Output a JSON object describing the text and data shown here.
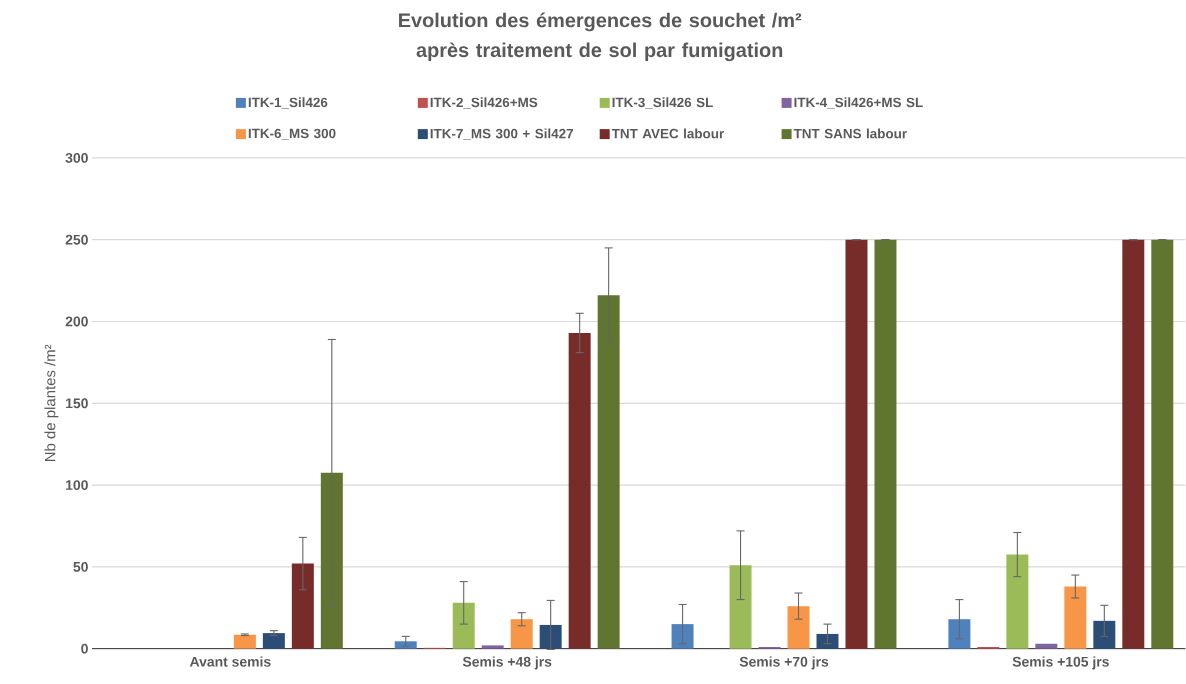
{
  "chart_data": {
    "type": "bar",
    "title": "Evolution des émergences de souchet /m² après traitement de sol par fumigation",
    "ylabel": "Nb de plantes /m²",
    "categories": [
      "Avant semis",
      "Semis +48 jrs",
      "Semis +70 jrs",
      "Semis +105 jrs"
    ],
    "series": [
      {
        "name": "ITK-1_Sil426",
        "color": "#4f81bd",
        "values": [
          0,
          4.5,
          15,
          18
        ],
        "errors": [
          null,
          3,
          12,
          12
        ]
      },
      {
        "name": "ITK-2_Sil426+MS",
        "color": "#c0504d",
        "values": [
          0,
          0.5,
          0,
          1
        ],
        "errors": [
          null,
          null,
          null,
          null
        ]
      },
      {
        "name": "ITK-3_Sil426 SL",
        "color": "#9bbb59",
        "values": [
          0,
          28,
          51,
          57.5
        ],
        "errors": [
          null,
          13,
          21,
          13.5
        ]
      },
      {
        "name": "ITK-4_Sil426+MS SL",
        "color": "#8064a2",
        "values": [
          0,
          2,
          1,
          3
        ],
        "errors": [
          null,
          null,
          null,
          null
        ]
      },
      {
        "name": "ITK-6_MS 300",
        "color": "#f79646",
        "values": [
          8.5,
          18,
          26,
          38
        ],
        "errors": [
          0.5,
          4,
          8,
          7
        ]
      },
      {
        "name": "ITK-7_MS 300 + Sil427",
        "color": "#2c4d75",
        "values": [
          9.5,
          14.5,
          9,
          17
        ],
        "errors": [
          1.5,
          15,
          6,
          9.5
        ]
      },
      {
        "name": "TNT AVEC labour",
        "color": "#772c2a",
        "values": [
          52,
          193,
          250,
          250
        ],
        "errors": [
          16,
          12,
          0,
          0
        ]
      },
      {
        "name": "TNT SANS labour",
        "color": "#5f7530",
        "values": [
          107.5,
          216,
          250,
          250
        ],
        "errors": [
          81.5,
          29,
          0,
          0
        ]
      }
    ],
    "ylim": [
      0,
      300
    ],
    "yticks": [
      0,
      50,
      100,
      150,
      200,
      250,
      300
    ],
    "grid": "y",
    "legend": "top"
  }
}
